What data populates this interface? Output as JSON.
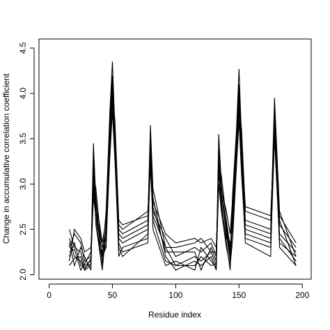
{
  "chart_data": {
    "type": "line",
    "title": "",
    "xlabel": "Residue index",
    "ylabel": "Change in accumulative correlation coefficient",
    "xlim": [
      -8,
      207
    ],
    "ylim": [
      1.95,
      4.6
    ],
    "xticks": [
      0,
      50,
      100,
      150,
      200
    ],
    "yticks": [
      2.0,
      2.5,
      3.0,
      3.5,
      4.0,
      4.5
    ],
    "xtick_labels": [
      "0",
      "50",
      "100",
      "150",
      "200"
    ],
    "ytick_labels": [
      "2.0",
      "2.5",
      "3.0",
      "3.5",
      "4.0",
      "4.5"
    ],
    "grid": false,
    "legend": "none",
    "line_color": "#000000",
    "series": [
      {
        "x": [
          16,
          20,
          25,
          28,
          33,
          35,
          37,
          40,
          42,
          45,
          48,
          50,
          52,
          55,
          58,
          78,
          80,
          82,
          92,
          100,
          115,
          120,
          128,
          132,
          134,
          136,
          140,
          143,
          145,
          148,
          150,
          152,
          155,
          175,
          178,
          182,
          195
        ],
        "y": [
          2.5,
          2.3,
          2.25,
          2.1,
          2.15,
          3.45,
          2.8,
          2.4,
          2.2,
          2.7,
          3.8,
          4.35,
          3.6,
          2.5,
          2.45,
          2.6,
          3.65,
          2.95,
          2.3,
          2.1,
          2.2,
          2.15,
          2.25,
          2.1,
          3.55,
          3.0,
          2.5,
          2.2,
          2.9,
          3.6,
          4.27,
          3.5,
          2.6,
          2.5,
          3.95,
          2.7,
          2.2
        ]
      },
      {
        "x": [
          16,
          20,
          25,
          28,
          33,
          35,
          37,
          40,
          42,
          45,
          48,
          50,
          52,
          55,
          58,
          78,
          80,
          82,
          92,
          100,
          115,
          120,
          128,
          132,
          134,
          136,
          140,
          143,
          145,
          148,
          150,
          152,
          155,
          175,
          178,
          182,
          195
        ],
        "y": [
          2.4,
          2.2,
          2.15,
          2.05,
          2.1,
          3.3,
          2.7,
          2.45,
          2.1,
          2.55,
          3.6,
          4.1,
          3.4,
          2.45,
          2.4,
          2.55,
          3.5,
          2.85,
          2.2,
          2.05,
          2.15,
          2.1,
          2.2,
          2.05,
          3.35,
          2.9,
          2.45,
          2.15,
          2.75,
          3.5,
          4.05,
          3.3,
          2.5,
          2.4,
          3.8,
          2.6,
          2.1
        ]
      },
      {
        "x": [
          16,
          20,
          25,
          28,
          33,
          35,
          37,
          40,
          42,
          45,
          48,
          50,
          52,
          55,
          58,
          78,
          80,
          82,
          92,
          100,
          115,
          120,
          128,
          132,
          134,
          136,
          140,
          143,
          145,
          148,
          150,
          152,
          155,
          175,
          178,
          182,
          195
        ],
        "y": [
          2.3,
          2.45,
          2.35,
          2.15,
          2.2,
          3.1,
          2.95,
          2.5,
          2.3,
          2.45,
          3.5,
          4.0,
          3.7,
          2.6,
          2.55,
          2.65,
          3.4,
          2.7,
          2.4,
          2.2,
          2.3,
          2.25,
          2.35,
          2.2,
          3.2,
          3.1,
          2.6,
          2.3,
          2.6,
          3.4,
          3.9,
          3.6,
          2.7,
          2.6,
          3.7,
          2.55,
          2.3
        ]
      },
      {
        "x": [
          16,
          20,
          25,
          28,
          33,
          35,
          37,
          40,
          42,
          45,
          48,
          50,
          52,
          55,
          58,
          78,
          80,
          82,
          92,
          100,
          115,
          120,
          128,
          132,
          134,
          136,
          140,
          143,
          145,
          148,
          150,
          152,
          155,
          175,
          178,
          182,
          195
        ],
        "y": [
          2.2,
          2.35,
          2.1,
          2.08,
          2.12,
          3.0,
          2.6,
          2.3,
          2.15,
          2.35,
          3.3,
          3.8,
          3.25,
          2.3,
          2.2,
          2.45,
          3.2,
          2.6,
          2.15,
          2.1,
          2.1,
          2.2,
          2.1,
          2.12,
          3.0,
          2.7,
          2.3,
          2.1,
          2.4,
          3.2,
          3.7,
          3.1,
          2.4,
          2.3,
          3.5,
          2.4,
          2.15
        ]
      },
      {
        "x": [
          16,
          20,
          25,
          28,
          33,
          35,
          37,
          40,
          42,
          45,
          48,
          50,
          52,
          55,
          58,
          78,
          80,
          82,
          92,
          100,
          115,
          120,
          128,
          132,
          134,
          136,
          140,
          143,
          145,
          148,
          150,
          152,
          155,
          175,
          178,
          182,
          195
        ],
        "y": [
          2.15,
          2.5,
          2.4,
          2.25,
          2.3,
          2.9,
          2.75,
          2.55,
          2.35,
          2.6,
          3.4,
          3.95,
          3.5,
          2.55,
          2.5,
          2.7,
          3.3,
          2.8,
          2.45,
          2.35,
          2.4,
          2.35,
          2.4,
          2.3,
          3.1,
          2.95,
          2.7,
          2.45,
          2.85,
          3.3,
          3.85,
          3.4,
          2.75,
          2.65,
          3.6,
          2.65,
          2.35
        ]
      },
      {
        "x": [
          16,
          20,
          25,
          28,
          33,
          35,
          37,
          40,
          42,
          45,
          48,
          50,
          52,
          55,
          58,
          78,
          80,
          82,
          92,
          100,
          115,
          120,
          128,
          132,
          134,
          136,
          140,
          143,
          145,
          148,
          150,
          152,
          155,
          175,
          178,
          182,
          195
        ],
        "y": [
          2.35,
          2.1,
          2.3,
          2.2,
          2.05,
          3.2,
          2.55,
          2.25,
          2.05,
          2.5,
          3.7,
          4.2,
          3.35,
          2.2,
          2.3,
          2.4,
          3.45,
          2.5,
          2.1,
          2.15,
          2.05,
          2.3,
          2.15,
          2.08,
          3.4,
          2.8,
          2.35,
          2.05,
          2.65,
          3.55,
          4.1,
          3.2,
          2.35,
          2.2,
          3.85,
          2.3,
          2.1
        ]
      },
      {
        "x": [
          16,
          20,
          25,
          28,
          33,
          35,
          37,
          40,
          42,
          45,
          48,
          50,
          52,
          55,
          58,
          78,
          80,
          82,
          92,
          100,
          115,
          120,
          128,
          132,
          134,
          136,
          140,
          143,
          145,
          148,
          150,
          152,
          155,
          175,
          178,
          182,
          195
        ],
        "y": [
          2.25,
          2.28,
          2.05,
          2.12,
          2.25,
          3.05,
          2.85,
          2.35,
          2.25,
          2.4,
          3.55,
          4.05,
          3.45,
          2.4,
          2.35,
          2.5,
          3.25,
          2.75,
          2.25,
          2.25,
          2.25,
          2.05,
          2.3,
          2.15,
          3.25,
          2.85,
          2.55,
          2.25,
          2.55,
          3.45,
          3.95,
          3.35,
          2.55,
          2.45,
          3.65,
          2.45,
          2.25
        ]
      },
      {
        "x": [
          16,
          20,
          25,
          28,
          33,
          35,
          37,
          40,
          42,
          45,
          48,
          50,
          52,
          55,
          58,
          78,
          80,
          82,
          92,
          100,
          115,
          120,
          128,
          132,
          134,
          136,
          140,
          143,
          145,
          148,
          150,
          152,
          155,
          175,
          178,
          182,
          195
        ],
        "y": [
          2.1,
          2.18,
          2.2,
          2.05,
          2.18,
          2.85,
          2.65,
          2.4,
          2.2,
          2.3,
          3.45,
          3.9,
          3.3,
          2.35,
          2.25,
          2.35,
          3.35,
          2.65,
          2.3,
          2.3,
          2.35,
          2.4,
          2.25,
          2.25,
          3.15,
          2.75,
          2.4,
          2.35,
          2.5,
          3.35,
          3.8,
          3.25,
          2.45,
          2.35,
          3.55,
          2.35,
          2.2
        ]
      }
    ]
  }
}
